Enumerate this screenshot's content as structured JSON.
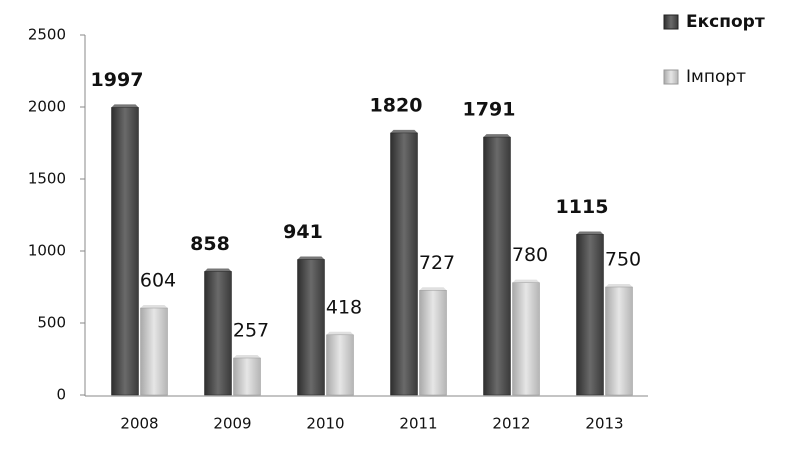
{
  "chart_data": {
    "type": "bar",
    "categories": [
      "2008",
      "2009",
      "2010",
      "2011",
      "2012",
      "2013"
    ],
    "series": [
      {
        "name": "Експорт",
        "color": "#4a4a4a",
        "values": [
          1997,
          858,
          941,
          1820,
          1791,
          1115
        ]
      },
      {
        "name": "Імпорт",
        "color": "#c8c8c8",
        "values": [
          604,
          257,
          418,
          727,
          780,
          750
        ]
      }
    ],
    "ylim": [
      0,
      2500
    ],
    "yticks": [
      0,
      500,
      1000,
      1500,
      2000,
      2500
    ],
    "legend": "top-right"
  }
}
